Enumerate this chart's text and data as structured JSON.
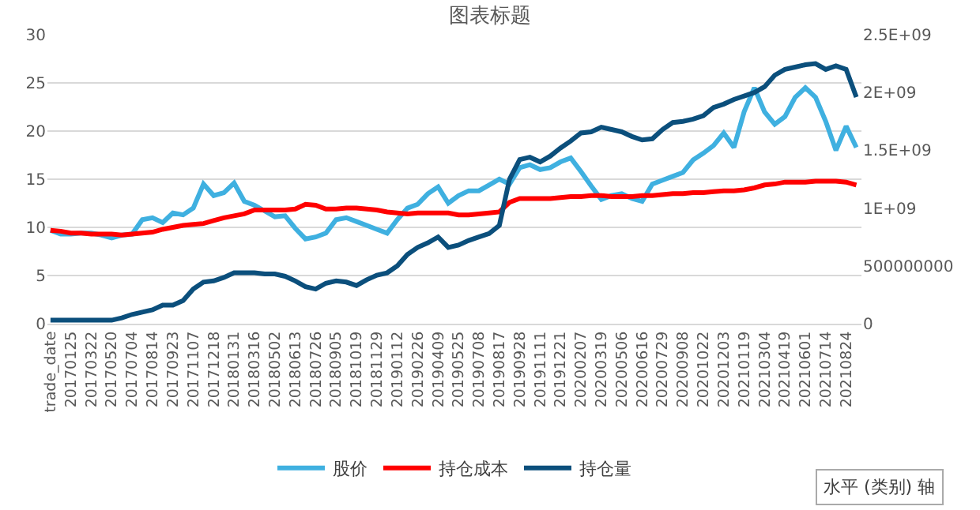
{
  "chart_data": {
    "type": "line",
    "title": "图表标题",
    "categories": [
      "trade_date",
      null,
      "20170125",
      null,
      "20170322",
      null,
      "20170520",
      null,
      "20170704",
      null,
      "20170814",
      null,
      "20170923",
      null,
      "20171107",
      null,
      "20171218",
      null,
      "20180131",
      null,
      "20180316",
      null,
      "20180502",
      null,
      "20180613",
      null,
      "20180726",
      null,
      "20180905",
      null,
      "20181019",
      null,
      "20181129",
      null,
      "20190112",
      null,
      "20190226",
      null,
      "20190409",
      null,
      "20190525",
      null,
      "20190708",
      null,
      "20190817",
      null,
      "20190928",
      null,
      "20191111",
      null,
      "20191221",
      null,
      "20200207",
      null,
      "20200319",
      null,
      "20200506",
      null,
      "20200616",
      null,
      "20200729",
      null,
      "20200908",
      null,
      "20201022",
      null,
      "20201203",
      null,
      "20210119",
      null,
      "20210304",
      null,
      "20210419",
      null,
      "20210601",
      null,
      "20210714",
      null,
      "20210824",
      null
    ],
    "series": [
      {
        "name": "股价",
        "color": "#3fb0e0",
        "values": [
          9.7,
          9.3,
          9.3,
          9.4,
          9.4,
          9.2,
          8.9,
          9.2,
          9.3,
          10.8,
          11,
          10.5,
          11.5,
          11.3,
          12,
          14.5,
          13.3,
          13.6,
          14.6,
          12.7,
          12.3,
          11.7,
          11.1,
          11.2,
          9.9,
          8.8,
          9,
          9.4,
          10.8,
          11,
          10.6,
          10.2,
          9.8,
          9.4,
          10.8,
          12,
          12.4,
          13.5,
          14.2,
          12.5,
          13.3,
          13.8,
          13.8,
          14.4,
          15,
          14.5,
          16.2,
          16.5,
          16,
          16.2,
          16.8,
          17.2,
          15.8,
          14.3,
          12.9,
          13.3,
          13.5,
          13,
          12.7,
          14.5,
          14.9,
          15.3,
          15.7,
          17,
          17.7,
          18.5,
          19.8,
          18.3,
          22,
          24.5,
          22,
          20.7,
          21.5,
          23.5,
          24.5,
          23.5,
          21,
          18,
          20.5,
          18.3
        ]
      },
      {
        "name": "持仓成本",
        "color": "#ff0000",
        "values": [
          9.7,
          9.6,
          9.4,
          9.4,
          9.3,
          9.3,
          9.3,
          9.2,
          9.3,
          9.4,
          9.5,
          9.8,
          10,
          10.2,
          10.3,
          10.4,
          10.7,
          11,
          11.2,
          11.4,
          11.8,
          11.8,
          11.8,
          11.8,
          11.9,
          12.4,
          12.3,
          11.9,
          11.9,
          12,
          12,
          11.9,
          11.8,
          11.6,
          11.5,
          11.4,
          11.5,
          11.5,
          11.5,
          11.5,
          11.3,
          11.3,
          11.4,
          11.5,
          11.6,
          12.6,
          13,
          13,
          13,
          13,
          13.1,
          13.2,
          13.2,
          13.3,
          13.3,
          13.2,
          13.2,
          13.2,
          13.3,
          13.3,
          13.4,
          13.5,
          13.5,
          13.6,
          13.6,
          13.7,
          13.8,
          13.8,
          13.9,
          14.1,
          14.4,
          14.5,
          14.7,
          14.7,
          14.7,
          14.8,
          14.8,
          14.8,
          14.7,
          14.4
        ]
      },
      {
        "name": "持仓量",
        "color": "#0b4f7c",
        "axis": "y2",
        "values": [
          30000000.0,
          30000000.0,
          30000000.0,
          30000000.0,
          30000000.0,
          30000000.0,
          30000000.0,
          50000000.0,
          80000000.0,
          100000000.0,
          120000000.0,
          160000000.0,
          160000000.0,
          200000000.0,
          300000000.0,
          360000000.0,
          370000000.0,
          400000000.0,
          440000000.0,
          440000000.0,
          440000000.0,
          430000000.0,
          430000000.0,
          410000000.0,
          370000000.0,
          320000000.0,
          300000000.0,
          350000000.0,
          370000000.0,
          360000000.0,
          330000000.0,
          380000000.0,
          420000000.0,
          440000000.0,
          500000000.0,
          600000000.0,
          660000000.0,
          700000000.0,
          750000000.0,
          660000000.0,
          680000000.0,
          720000000.0,
          750000000.0,
          780000000.0,
          850000000.0,
          1250000000.0,
          1420000000.0,
          1440000000.0,
          1400000000.0,
          1450000000.0,
          1520000000.0,
          1580000000.0,
          1650000000.0,
          1660000000.0,
          1700000000.0,
          1680000000.0,
          1660000000.0,
          1620000000.0,
          1590000000.0,
          1600000000.0,
          1680000000.0,
          1740000000.0,
          1750000000.0,
          1770000000.0,
          1800000000.0,
          1870000000.0,
          1900000000.0,
          1940000000.0,
          1970000000.0,
          2000000000.0,
          2050000000.0,
          2150000000.0,
          2200000000.0,
          2220000000.0,
          2240000000.0,
          2250000000.0,
          2200000000.0,
          2230000000.0,
          2200000000.0,
          1960000000.0
        ]
      }
    ],
    "ylim": [
      0,
      30
    ],
    "yticks": [
      0,
      5,
      10,
      15,
      20,
      25,
      30
    ],
    "y2lim": [
      0,
      2500000000.0
    ],
    "y2ticks": [
      0,
      500000000,
      {
        "value": 1000000000.0,
        "label": "1E+09"
      },
      {
        "value": 1500000000.0,
        "label": "1.5E+09"
      },
      {
        "value": 2000000000.0,
        "label": "2E+09"
      },
      {
        "value": 2500000000.0,
        "label": "2.5E+09"
      }
    ],
    "grid": "y",
    "legend": "bottom",
    "marker": "none",
    "line_style": "solid",
    "annotations": [
      "水平 (类别) 轴"
    ]
  }
}
